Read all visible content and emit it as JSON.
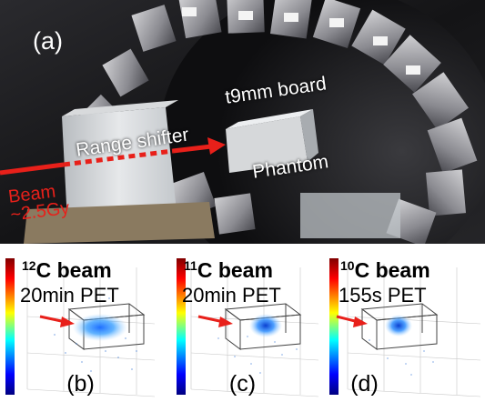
{
  "photo": {
    "panel_label": "(a)",
    "board_label": "t9mm board",
    "shifter_label": "Range shifter",
    "phantom_label": "Phantom",
    "beam_label_1": "Beam",
    "beam_label_2": "~2.5Gy"
  },
  "panels": [
    {
      "isotope_mass": "12",
      "isotope_rest": "C beam",
      "acquisition": "20min PET",
      "letter": "(b)"
    },
    {
      "isotope_mass": "11",
      "isotope_rest": "C beam",
      "acquisition": "20min PET",
      "letter": "(c)"
    },
    {
      "isotope_mass": "10",
      "isotope_rest": "C beam",
      "acquisition": "155s PET",
      "letter": "(d)"
    }
  ],
  "colors": {
    "beam_arrow": "#e8201a",
    "colorbar": [
      "#800000",
      "#ff0000",
      "#ffff00",
      "#00ffff",
      "#0000ff",
      "#000080"
    ]
  }
}
